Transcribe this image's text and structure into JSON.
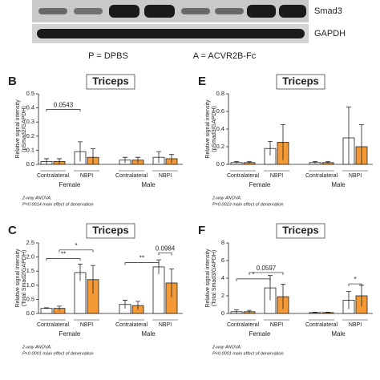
{
  "blot": {
    "labels": [
      "Smad3",
      "GAPDH"
    ],
    "legend": [
      "P = DPBS",
      "A = ACVR2B-Fc"
    ]
  },
  "chart_data": [
    {
      "type": "bar",
      "label": "B",
      "title": "Triceps",
      "ylabel": [
        "Relative signal intensity",
        "(pSmad2/GAPDH)"
      ],
      "categories": [
        "Contralateral",
        "NBPI",
        "Contralateral",
        "NBPI"
      ],
      "groups": [
        "Female",
        "Male"
      ],
      "series": [
        {
          "color": "#ffffff",
          "values": [
            0.02,
            0.09,
            0.03,
            0.05
          ],
          "errors": [
            0.02,
            0.07,
            0.02,
            0.04
          ]
        },
        {
          "color": "#f39a36",
          "values": [
            0.02,
            0.05,
            0.03,
            0.04
          ],
          "errors": [
            0.02,
            0.06,
            0.02,
            0.03
          ]
        }
      ],
      "ylim": [
        0,
        0.5
      ],
      "yticks": [
        {
          "value": 0,
          "label": "0.0"
        },
        0.1,
        0.2,
        0.3,
        0.4,
        0.5
      ],
      "annotations": [
        "0.0543"
      ],
      "note": [
        "2-way ANOVA:",
        "P=0.0014 main effect of denervation"
      ]
    },
    {
      "type": "bar",
      "label": "E",
      "title": "Triceps",
      "ylabel": [
        "Relative signal intensity",
        "(pSmad3/GAPDH)"
      ],
      "categories": [
        "Contralateral",
        "NBPI",
        "Contralateral",
        "NBPI"
      ],
      "groups": [
        "Female",
        "Male"
      ],
      "series": [
        {
          "color": "#ffffff",
          "values": [
            0.02,
            0.18,
            0.02,
            0.3
          ],
          "errors": [
            0.01,
            0.08,
            0.01,
            0.35
          ]
        },
        {
          "color": "#f39a36",
          "values": [
            0.02,
            0.25,
            0.02,
            0.2
          ],
          "errors": [
            0.01,
            0.2,
            0.01,
            0.25
          ]
        }
      ],
      "ylim": [
        0,
        0.8
      ],
      "yticks": [
        {
          "value": 0,
          "label": "0.0"
        },
        0.2,
        0.4,
        0.6,
        0.8
      ],
      "annotations": [],
      "note": [
        "2-way ANOVA:",
        "P=0.0023 main effect of denervation"
      ]
    },
    {
      "type": "bar",
      "label": "C",
      "title": "Triceps",
      "ylabel": [
        "Relative signal intensity",
        "(Total Smad2/GAPDH)"
      ],
      "categories": [
        "Contralateral",
        "NBPI",
        "Contralateral",
        "NBPI"
      ],
      "groups": [
        "Female",
        "Male"
      ],
      "series": [
        {
          "color": "#ffffff",
          "values": [
            0.18,
            1.45,
            0.32,
            1.65
          ],
          "errors": [
            0.02,
            0.3,
            0.15,
            0.25
          ]
        },
        {
          "color": "#f39a36",
          "values": [
            0.18,
            1.2,
            0.28,
            1.08
          ],
          "errors": [
            0.08,
            0.5,
            0.15,
            0.5
          ]
        }
      ],
      "ylim": [
        0,
        2.5
      ],
      "yticks": [
        {
          "value": 0,
          "label": "0.0"
        },
        0.5,
        {
          "value": 1,
          "label": "1.0"
        },
        1.5,
        {
          "value": 2,
          "label": "2.0"
        },
        2.5
      ],
      "annotations": [
        "**",
        "*",
        "**",
        "0.0984"
      ],
      "note": [
        "2-way ANOVA:",
        "P<0.0001 main effect of denervation"
      ]
    },
    {
      "type": "bar",
      "label": "F",
      "title": "Triceps",
      "ylabel": [
        "Relative signal intensity",
        "(Total Smad3/GAPDH)"
      ],
      "categories": [
        "Contralateral",
        "NBPI",
        "Contralateral",
        "NBPI"
      ],
      "groups": [
        "Female",
        "Male"
      ],
      "series": [
        {
          "color": "#ffffff",
          "values": [
            0.2,
            2.9,
            0.1,
            1.5
          ],
          "errors": [
            0.2,
            1.4,
            0.05,
            1.0
          ]
        },
        {
          "color": "#f39a36",
          "values": [
            0.2,
            1.9,
            0.1,
            2.0
          ],
          "errors": [
            0.15,
            1.4,
            0.05,
            1.2
          ]
        }
      ],
      "ylim": [
        0,
        8
      ],
      "yticks": [
        0,
        2,
        4,
        6,
        8
      ],
      "annotations": [
        "*",
        "0.0597",
        "*"
      ],
      "note": [
        "2-way ANOVA:",
        "P<0.0001 main effect of denervation"
      ]
    }
  ]
}
